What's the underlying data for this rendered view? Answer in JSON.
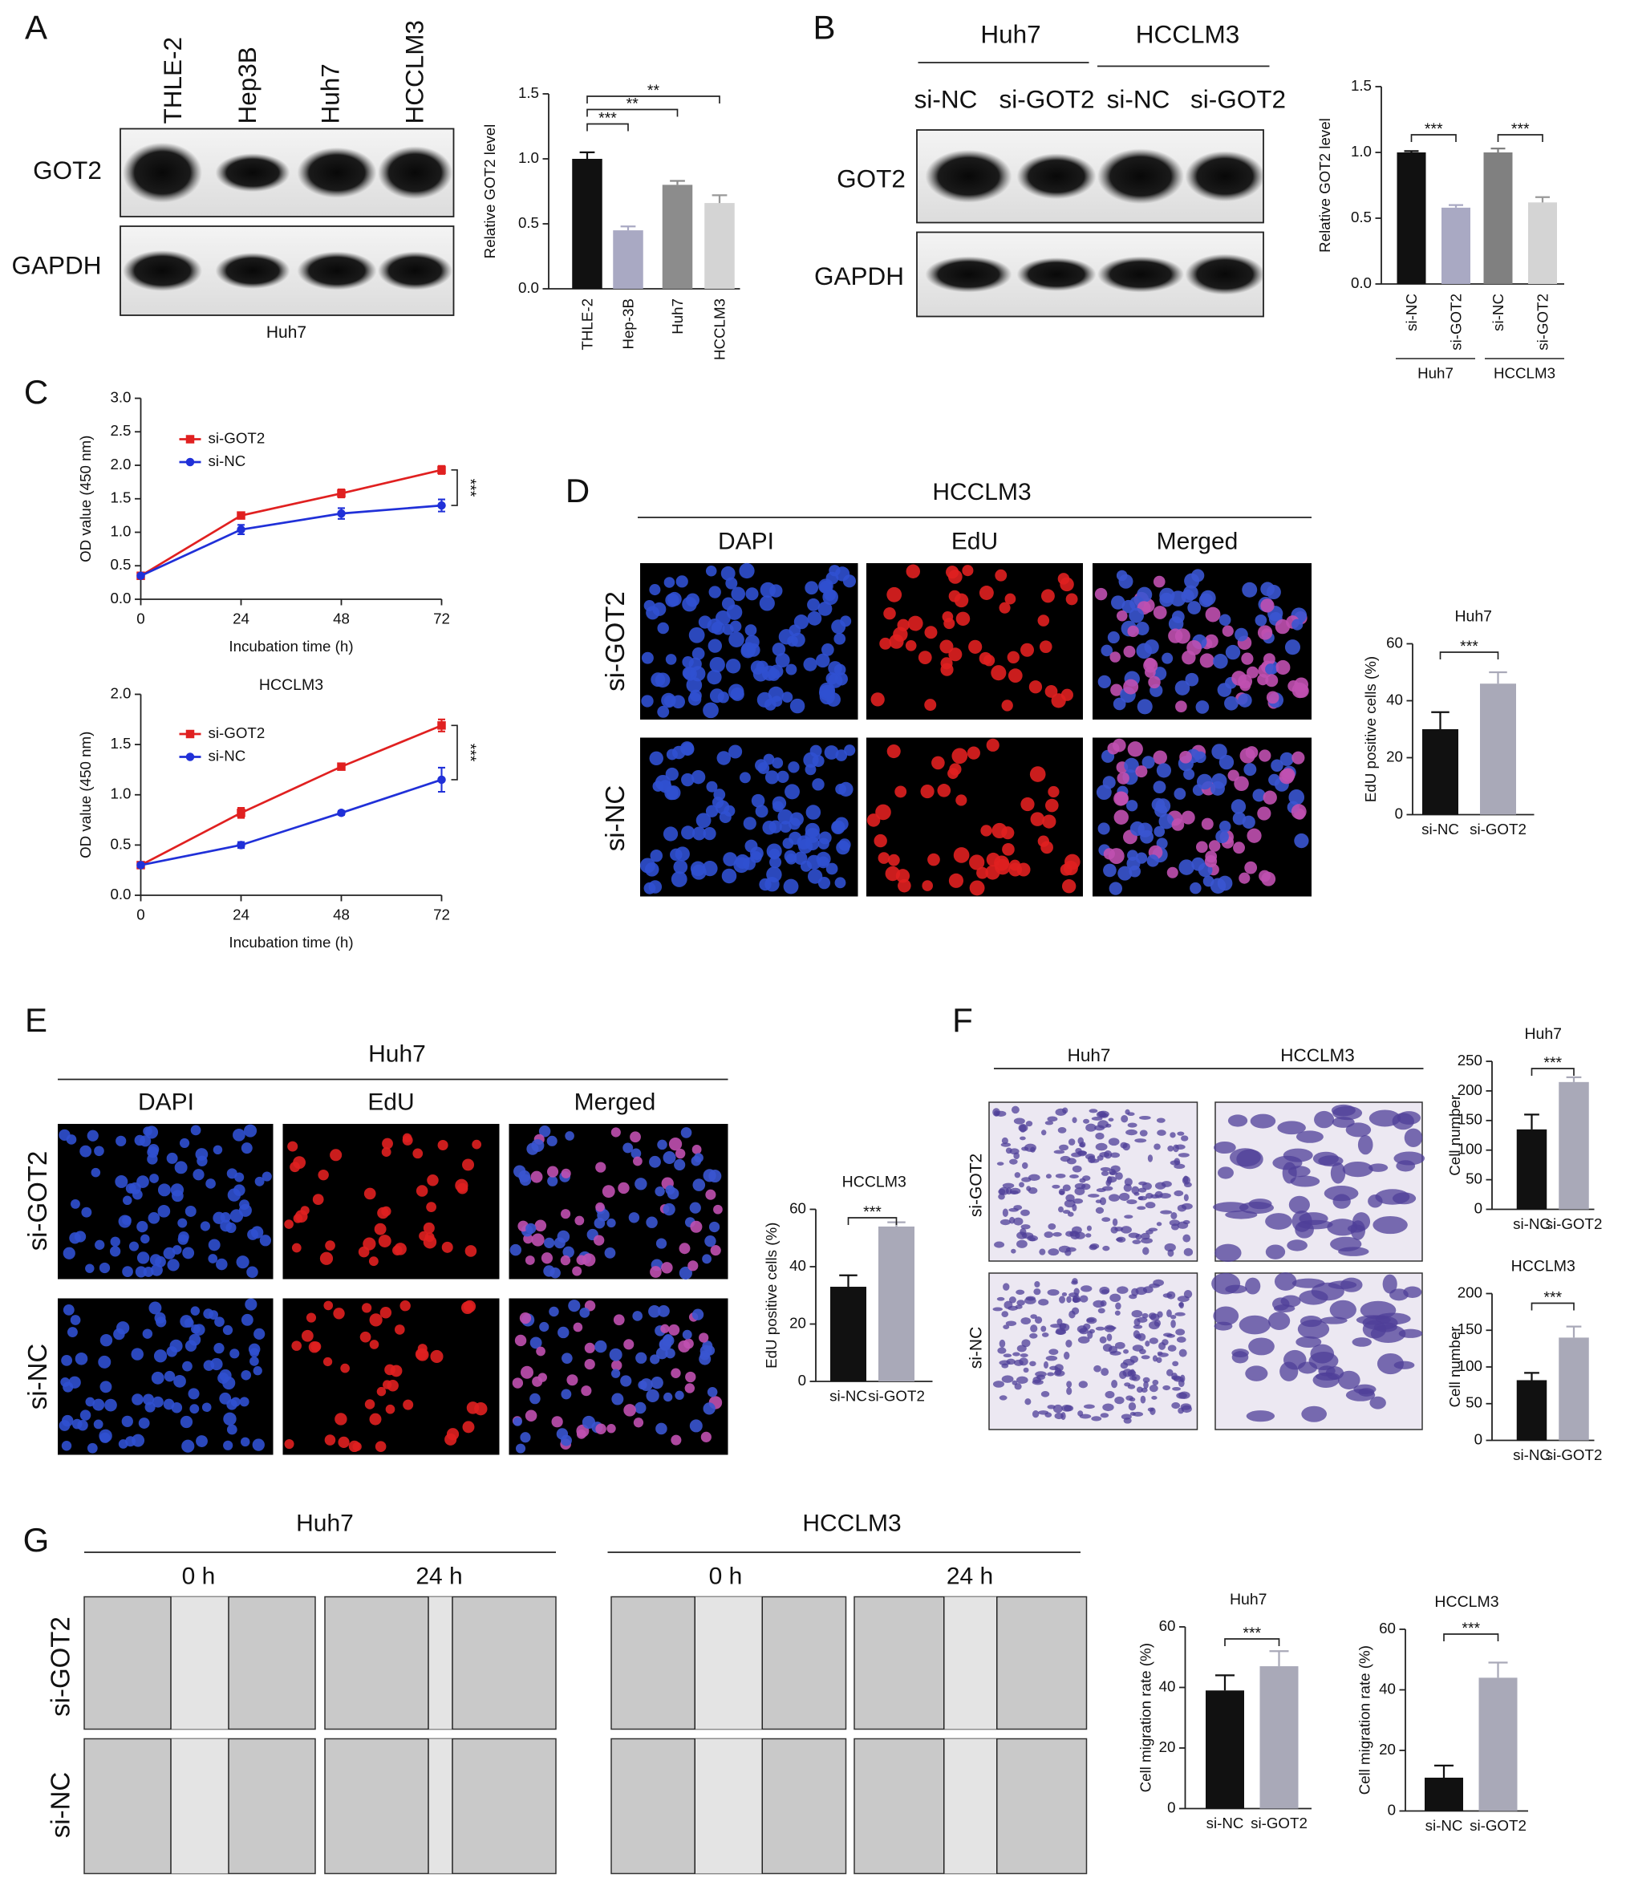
{
  "chart_data": [
    {
      "type": "bar",
      "categories": [
        "THLE-2",
        "Hep-3B",
        "Huh7",
        "HCCLM3"
      ],
      "values": [
        1.0,
        0.45,
        0.8,
        0.66
      ],
      "errors": [
        0.05,
        0.03,
        0.03,
        0.06
      ],
      "colors": [
        "#111111",
        "#a9a9c3",
        "#8c8c8c",
        "#d4d4d4"
      ],
      "ylim": [
        0,
        1.5
      ],
      "yticks": [
        {
          "value": 0,
          "label": "0.0"
        },
        0.5,
        {
          "value": 1,
          "label": "1.0"
        },
        1.5
      ],
      "ylabel": "Relative GOT2 level",
      "annotations": [
        "***",
        "**",
        "**"
      ]
    },
    {
      "type": "bar",
      "categories": [
        "si-NC",
        "si-GOT2",
        "si-NC",
        "si-GOT2"
      ],
      "groups": [
        "Huh7",
        "HCCLM3"
      ],
      "values": [
        1.0,
        0.58,
        1.0,
        0.62
      ],
      "errors": [
        0.01,
        0.02,
        0.03,
        0.04
      ],
      "colors": [
        "#111111",
        "#a9a9c3",
        "#808080",
        "#d4d4d4"
      ],
      "ylim": [
        0,
        1.5
      ],
      "yticks": [
        {
          "value": 0,
          "label": "0.0"
        },
        0.5,
        {
          "value": 1,
          "label": "1.0"
        },
        1.5
      ],
      "ylabel": "Relative GOT2 level",
      "annotations": [
        "***",
        "***"
      ]
    },
    {
      "type": "line",
      "x": [
        0,
        24,
        48,
        72
      ],
      "xlim": [
        0,
        72
      ],
      "xticks": [
        0,
        24,
        48,
        72
      ],
      "ylim": [
        0,
        3
      ],
      "yticks": [
        {
          "value": 0,
          "label": "0.0"
        },
        0.5,
        {
          "value": 1,
          "label": "1.0"
        },
        1.5,
        {
          "value": 2,
          "label": "2.0"
        },
        2.5,
        {
          "value": 3,
          "label": "3.0"
        }
      ],
      "xlabel": "Incubation time (h)",
      "ylabel": "OD value (450 nm)",
      "legend": "upper left",
      "series": [
        {
          "name": "si-GOT2",
          "color": "#e02020",
          "marker": "square",
          "values": [
            0.35,
            1.25,
            1.58,
            1.93
          ],
          "errors": [
            0.05,
            0.03,
            0.06,
            0.06
          ]
        },
        {
          "name": "si-NC",
          "color": "#2030d8",
          "marker": "circle",
          "values": [
            0.35,
            1.04,
            1.28,
            1.4
          ],
          "errors": [
            0.02,
            0.07,
            0.08,
            0.09
          ]
        }
      ],
      "annotations": [
        "***"
      ]
    },
    {
      "type": "line",
      "title": "HCCLM3",
      "x": [
        0,
        24,
        48,
        72
      ],
      "xlim": [
        0,
        72
      ],
      "xticks": [
        0,
        24,
        48,
        72
      ],
      "ylim": [
        0,
        2
      ],
      "yticks": [
        {
          "value": 0,
          "label": "0.0"
        },
        0.5,
        {
          "value": 1,
          "label": "1.0"
        },
        1.5,
        {
          "value": 2,
          "label": "2.0"
        }
      ],
      "xlabel": "Incubation time (h)",
      "ylabel": "OD value (450 nm)",
      "legend": "upper left",
      "series": [
        {
          "name": "si-GOT2",
          "color": "#e02020",
          "marker": "square",
          "values": [
            0.3,
            0.82,
            1.28,
            1.69
          ],
          "errors": [
            0.02,
            0.05,
            0.03,
            0.06
          ]
        },
        {
          "name": "si-NC",
          "color": "#2030d8",
          "marker": "circle",
          "values": [
            0.3,
            0.5,
            0.82,
            1.15
          ],
          "errors": [
            0.02,
            0.03,
            0.02,
            0.12
          ]
        }
      ],
      "annotations": [
        "***"
      ]
    },
    {
      "type": "bar",
      "title": "Huh7",
      "categories": [
        "si-NC",
        "si-GOT2"
      ],
      "values": [
        30,
        46
      ],
      "errors": [
        6,
        4
      ],
      "colors": [
        "#111111",
        "#a9a9b8"
      ],
      "ylim": [
        0,
        60
      ],
      "yticks": [
        0,
        20,
        40,
        60
      ],
      "ylabel": "EdU positive cells (%)",
      "annotations": [
        "***"
      ]
    },
    {
      "type": "bar",
      "title": "HCCLM3",
      "categories": [
        "si-NC",
        "si-GOT2"
      ],
      "values": [
        33,
        54
      ],
      "errors": [
        4,
        1.5
      ],
      "colors": [
        "#111111",
        "#a9a9b8"
      ],
      "ylim": [
        0,
        60
      ],
      "yticks": [
        0,
        20,
        40,
        60
      ],
      "ylabel": "EdU positive cells (%)",
      "annotations": [
        "***"
      ]
    },
    {
      "type": "bar",
      "title": "Huh7",
      "categories": [
        "si-NC",
        "si-GOT2"
      ],
      "values": [
        135,
        215
      ],
      "errors": [
        25,
        8
      ],
      "colors": [
        "#111111",
        "#a9a9b8"
      ],
      "ylim": [
        0,
        250
      ],
      "yticks": [
        0,
        50,
        100,
        150,
        200,
        250
      ],
      "ylabel": "Cell number",
      "annotations": [
        "***"
      ]
    },
    {
      "type": "bar",
      "title": "HCCLM3",
      "categories": [
        "si-NC",
        "si-GOT2"
      ],
      "values": [
        82,
        140
      ],
      "errors": [
        10,
        15
      ],
      "colors": [
        "#111111",
        "#a9a9b8"
      ],
      "ylim": [
        0,
        200
      ],
      "yticks": [
        0,
        50,
        100,
        150,
        200
      ],
      "ylabel": "Cell number",
      "annotations": [
        "***"
      ]
    },
    {
      "type": "bar",
      "title": "Huh7",
      "categories": [
        "si-NC",
        "si-GOT2"
      ],
      "values": [
        39,
        47
      ],
      "errors": [
        5,
        5
      ],
      "colors": [
        "#111111",
        "#a9a9b8"
      ],
      "ylim": [
        0,
        60
      ],
      "yticks": [
        0,
        20,
        40,
        60
      ],
      "ylabel": "Cell migration rate (%)",
      "annotations": [
        "***"
      ]
    },
    {
      "type": "bar",
      "title": "HCCLM3",
      "categories": [
        "si-NC",
        "si-GOT2"
      ],
      "values": [
        11,
        44
      ],
      "errors": [
        4,
        5
      ],
      "colors": [
        "#111111",
        "#a9a9b8"
      ],
      "ylim": [
        0,
        60
      ],
      "yticks": [
        0,
        20,
        40,
        60
      ],
      "ylabel": "Cell migration rate (%)",
      "annotations": [
        "***"
      ]
    }
  ],
  "panels": {
    "labels": [
      "A",
      "B",
      "C",
      "D",
      "E",
      "F",
      "G"
    ],
    "A": {
      "lanes": [
        "THLE-2",
        "Hep3B",
        "Huh7",
        "HCCLM3"
      ],
      "blots": [
        "GOT2",
        "GAPDH"
      ],
      "cell_line": "Huh7"
    },
    "B": {
      "groups": [
        "Huh7",
        "HCCLM3"
      ],
      "lanes": [
        "si-NC",
        "si-GOT2",
        "si-NC",
        "si-GOT2"
      ],
      "blots": [
        "GOT2",
        "GAPDH"
      ]
    },
    "D": {
      "cell_line": "HCCLM3",
      "channels": [
        "DAPI",
        "EdU",
        "Merged"
      ],
      "rows": [
        "si-GOT2",
        "si-NC"
      ]
    },
    "E": {
      "cell_line": "Huh7",
      "channels": [
        "DAPI",
        "EdU",
        "Merged"
      ],
      "rows": [
        "si-GOT2",
        "si-NC"
      ]
    },
    "F": {
      "columns": [
        "Huh7",
        "HCCLM3"
      ],
      "rows": [
        "si-GOT2",
        "si-NC"
      ]
    },
    "G": {
      "groups": [
        "Huh7",
        "HCCLM3"
      ],
      "times": [
        "0 h",
        "24 h",
        "0 h",
        "24 h"
      ],
      "rows": [
        "si-GOT2",
        "si-NC"
      ]
    }
  }
}
